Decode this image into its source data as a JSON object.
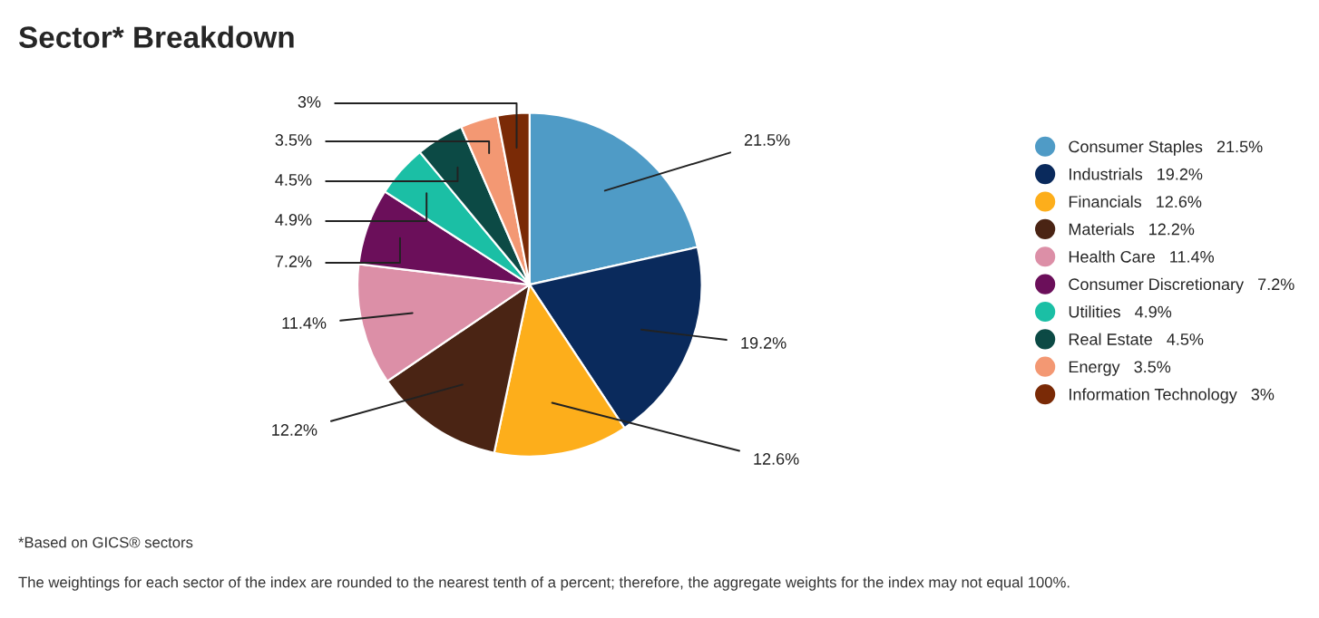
{
  "chart_data": {
    "type": "pie",
    "title": "Sector* Breakdown",
    "categories": [
      "Consumer Staples",
      "Industrials",
      "Financials",
      "Materials",
      "Health Care",
      "Consumer Discretionary",
      "Utilities",
      "Real Estate",
      "Energy",
      "Information Technology"
    ],
    "values": [
      21.5,
      19.2,
      12.6,
      12.2,
      11.4,
      7.2,
      4.9,
      4.5,
      3.5,
      3
    ],
    "colors": [
      "#4f9bc6",
      "#0a2a5c",
      "#fdae1b",
      "#4a2414",
      "#dc8fa7",
      "#6b0f5a",
      "#1bbfa5",
      "#0c4a45",
      "#f39873",
      "#7a2a06"
    ],
    "value_labels": [
      "21.5%",
      "19.2%",
      "12.6%",
      "12.2%",
      "11.4%",
      "7.2%",
      "4.9%",
      "4.5%",
      "3.5%",
      "3%"
    ],
    "legend": "right",
    "annotations": [
      "*Based on GICS® sectors",
      "The weightings for each sector of the index are rounded to the nearest tenth of a percent; therefore, the aggregate weights for the index may not equal 100%."
    ]
  }
}
